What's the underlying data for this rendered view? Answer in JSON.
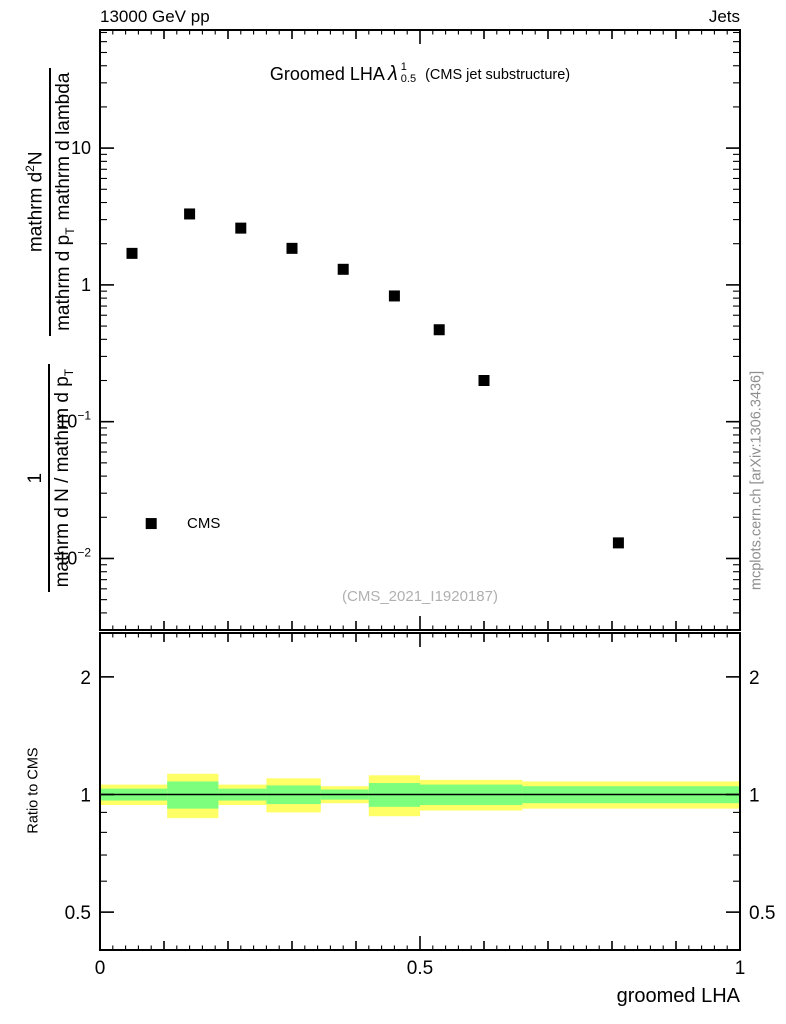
{
  "header": {
    "left": "13000 GeV pp",
    "right": "Jets"
  },
  "title": {
    "prefix": "Groomed LHA",
    "lambda": "λ",
    "sup": "1",
    "sub": "0.5",
    "suffix": "(CMS jet substructure)"
  },
  "legend": {
    "label": "CMS"
  },
  "watermark": "(CMS_2021_I1920187)",
  "side_note": "mcplots.cern.ch [arXiv:1306.3436]",
  "xlabel": "groomed LHA",
  "ratio_ylabel": "Ratio to CMS",
  "ylabel_main": {
    "frac1": {
      "num": "1",
      "den_text": "mathrm d N / mathrm d p",
      "den_sub": "T"
    },
    "frac2": {
      "num_text": "mathrm d",
      "num_sup": "2",
      "num_text2": "N",
      "den_text": "mathrm d p",
      "den_sub": "T",
      "den_text2": "mathrm d lambda"
    }
  },
  "colors": {
    "band_outer": "#ffff66",
    "band_inner": "#7dff7d",
    "marker": "#000000",
    "frame": "#000000",
    "gray_text": "#8e8e8e"
  },
  "chart_data": {
    "type": "scatter",
    "title": "Groomed LHA lambda^1_0.5 (CMS jet substructure)",
    "xlabel": "groomed LHA",
    "ylabel": "1/(dN/dp_T) d^2N/(dp_T dlambda)",
    "legend_position": "inside-left-lower",
    "grid": false,
    "xlim": [
      0,
      1
    ],
    "ylim": [
      0.003,
      73
    ],
    "yscale": "log",
    "x_major_ticks": [
      0,
      0.5,
      1
    ],
    "x_major_labels": [
      "0",
      "0.5",
      "1"
    ],
    "y_ticks": [
      {
        "value": 10,
        "label": "10",
        "exp": ""
      },
      {
        "value": 1,
        "label": "1",
        "exp": ""
      },
      {
        "value": 0.1,
        "label": "10",
        "exp": "−1"
      },
      {
        "value": 0.01,
        "label": "10",
        "exp": "−2"
      }
    ],
    "series": [
      {
        "name": "CMS",
        "marker": "square",
        "color": "#000000",
        "x": [
          0.05,
          0.14,
          0.22,
          0.3,
          0.38,
          0.46,
          0.53,
          0.6,
          0.81
        ],
        "y": [
          1.7,
          3.3,
          2.6,
          1.85,
          1.3,
          0.83,
          0.47,
          0.2,
          0.013
        ]
      }
    ],
    "legend_marker": {
      "x": 0.08,
      "y": 0.018
    },
    "ratio": {
      "ylabel": "Ratio to CMS",
      "yscale": "log",
      "ylim": [
        0.4,
        2.59
      ],
      "major_ticks": [
        0.5,
        1,
        2
      ],
      "major_labels": [
        "0.5",
        "1",
        "2"
      ],
      "minor_ticks": [
        0.6,
        0.7,
        0.8,
        0.9
      ],
      "line_y": 1.0,
      "bands": [
        {
          "x0": 0.0,
          "x1": 0.105,
          "outer": [
            0.94,
            1.06
          ],
          "inner": [
            0.965,
            1.035
          ]
        },
        {
          "x0": 0.105,
          "x1": 0.185,
          "outer": [
            0.87,
            1.13
          ],
          "inner": [
            0.92,
            1.08
          ]
        },
        {
          "x0": 0.185,
          "x1": 0.26,
          "outer": [
            0.94,
            1.06
          ],
          "inner": [
            0.965,
            1.035
          ]
        },
        {
          "x0": 0.26,
          "x1": 0.345,
          "outer": [
            0.9,
            1.1
          ],
          "inner": [
            0.945,
            1.055
          ]
        },
        {
          "x0": 0.345,
          "x1": 0.42,
          "outer": [
            0.95,
            1.05
          ],
          "inner": [
            0.97,
            1.03
          ]
        },
        {
          "x0": 0.42,
          "x1": 0.5,
          "outer": [
            0.88,
            1.12
          ],
          "inner": [
            0.93,
            1.07
          ]
        },
        {
          "x0": 0.5,
          "x1": 0.66,
          "outer": [
            0.91,
            1.09
          ],
          "inner": [
            0.94,
            1.06
          ]
        },
        {
          "x0": 0.66,
          "x1": 1.0,
          "outer": [
            0.92,
            1.08
          ],
          "inner": [
            0.95,
            1.05
          ]
        }
      ]
    }
  }
}
